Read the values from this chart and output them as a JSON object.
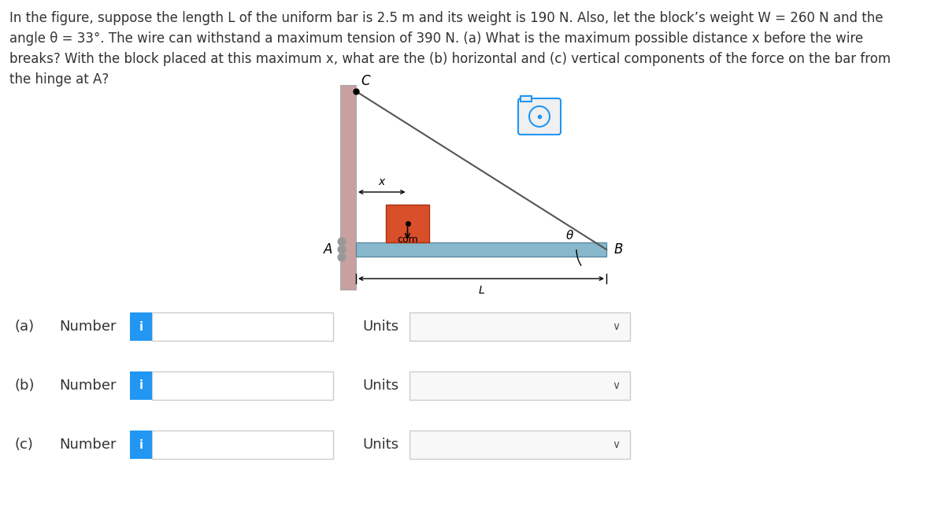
{
  "title_text": "In the figure, suppose the length L of the uniform bar is 2.5 m and its weight is 190 N. Also, let the block’s weight W = 260 N and the\nangle θ = 33°. The wire can withstand a maximum tension of 390 N. (a) What is the maximum possible distance x before the wire\nbreaks? With the block placed at this maximum x, what are the (b) horizontal and (c) vertical components of the force on the bar from\nthe hinge at A?",
  "background_color": "#ffffff",
  "wall_color": "#c8a0a0",
  "bar_color": "#87b8cc",
  "block_color": "#d94f2a",
  "wire_color": "#555555",
  "label_color": "#333333",
  "info_btn_color": "#2196f3",
  "title_fontsize": 12.0,
  "label_fontsize": 13,
  "rows": [
    {
      "label": "(a)",
      "sublabel": "Number"
    },
    {
      "label": "(b)",
      "sublabel": "Number"
    },
    {
      "label": "(c)",
      "sublabel": "Number"
    }
  ]
}
